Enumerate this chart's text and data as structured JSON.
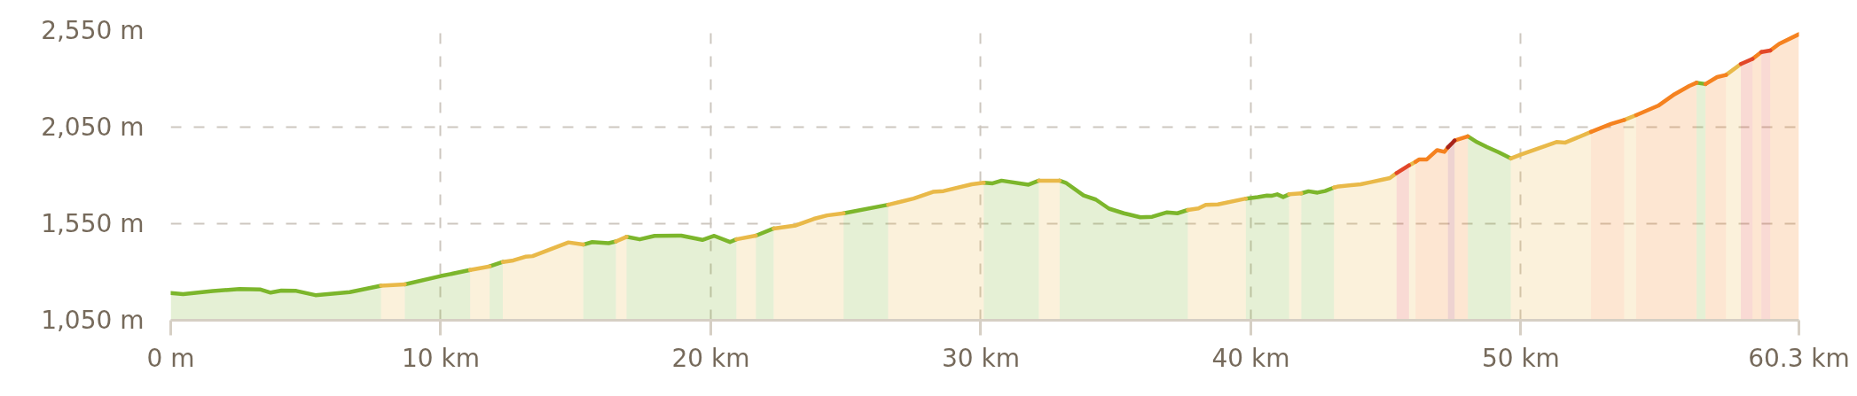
{
  "chart_data": {
    "type": "area",
    "series": [
      {
        "color": "#7cb62c",
        "x": [
          0,
          0.46,
          1.56,
          2.55,
          3.33,
          3.7,
          4.1,
          4.65,
          5.36,
          6.63,
          7.79,
          8.2,
          8.67,
          10.0,
          11.09,
          11.4,
          11.81,
          12.3,
          13.5,
          15.28,
          15.61,
          16.22,
          16.49,
          16.7,
          16.88,
          17.37,
          17.92,
          18.91,
          19.69,
          20.13,
          20.71,
          20.95,
          21.3,
          21.67,
          22.33,
          23.5,
          24.92,
          26.57,
          28.5,
          30.11,
          30.44,
          30.77,
          31.77,
          32.15,
          32.5,
          32.92,
          33.15,
          33.81,
          34.26,
          34.75,
          35.3,
          35.91,
          36.35,
          36.9,
          37.28,
          37.67,
          38.5,
          39.82,
          40.26,
          40.6,
          40.76,
          40.98,
          41.2,
          41.42,
          41.6,
          41.87,
          42.14,
          42.47,
          42.75,
          43.08,
          46.0,
          48.04,
          48.37,
          48.75,
          49.19,
          49.63,
          53.0,
          56.51,
          56.84
        ],
        "values": [
          1191,
          1185,
          1201,
          1212,
          1209,
          1193,
          1204,
          1202,
          1180,
          1196,
          1229,
          null,
          1236,
          1279,
          1310,
          null,
          1329,
          1352,
          null,
          1442,
          1455,
          1449,
          1458,
          null,
          1482,
          1469,
          1487,
          1488,
          1466,
          1487,
          1455,
          1469,
          null,
          1488,
          1525,
          null,
          1604,
          1648,
          null,
          1762,
          1759,
          1773,
          1752,
          1773,
          null,
          1773,
          1762,
          1696,
          1675,
          1628,
          1604,
          1583,
          1586,
          1609,
          1604,
          1621,
          null,
          1680,
          1688,
          1696,
          1694,
          1702,
          1688,
          1702,
          null,
          1707,
          1718,
          1711,
          1719,
          1737,
          null,
          2002,
          1973,
          1947,
          1919,
          1888,
          null,
          2280,
          2273
        ]
      },
      {
        "color": "#e9b949",
        "x": [
          7.79,
          8.67,
          10.0,
          11.09,
          11.81,
          12.05,
          12.3,
          12.69,
          13.13,
          13.4,
          14.73,
          15.28,
          16.0,
          16.49,
          16.88,
          19.0,
          20.95,
          21.67,
          22.0,
          22.33,
          23.15,
          23.82,
          24.31,
          24.92,
          25.7,
          26.57,
          27.51,
          28.23,
          28.62,
          29.67,
          30.11,
          31.0,
          32.15,
          32.92,
          35.0,
          37.67,
          38.06,
          38.33,
          38.78,
          39.82,
          40.6,
          41.42,
          41.87,
          42.5,
          43.08,
          43.25,
          44.07,
          44.44,
          44.88,
          45.15,
          45.4,
          45.6,
          45.86,
          45.98,
          46.1,
          48.0,
          49.63,
          50.01,
          51.32,
          51.65,
          52.6,
          53.5,
          53.83,
          54.27,
          56.0,
          57.6,
          58.15
        ],
        "values": [
          1229,
          1236,
          null,
          1310,
          1329,
          null,
          1352,
          1360,
          1379,
          1382,
          1453,
          1442,
          null,
          1458,
          1482,
          null,
          1469,
          1488,
          null,
          1525,
          1541,
          1575,
          1593,
          1604,
          null,
          1648,
          1680,
          1715,
          1719,
          1754,
          1762,
          null,
          1773,
          1773,
          null,
          1621,
          1629,
          1648,
          1650,
          1680,
          null,
          1702,
          1707,
          null,
          1737,
          1743,
          1754,
          1765,
          1778,
          1786,
          1812,
          null,
          1852,
          1861,
          1870,
          null,
          1888,
          1908,
          1973,
          1970,
          2025,
          null,
          2087,
          2112,
          null,
          2320,
          2377
        ]
      },
      {
        "color": "#f58220",
        "x": [
          46.1,
          46.24,
          46.52,
          46.9,
          47.17,
          47.3,
          47.43,
          47.55,
          48.04,
          50.0,
          52.6,
          53.34,
          53.83,
          54.05,
          54.27,
          55.09,
          55.69,
          56.24,
          56.51,
          56.68,
          56.84,
          57.27,
          57.6,
          58.0,
          58.58,
          58.91,
          59.08,
          59.24,
          59.57,
          60.3
        ],
        "values": [
          1870,
          1883,
          1883,
          1931,
          1922,
          1945,
          null,
          1981,
          2002,
          null,
          2025,
          2067,
          2087,
          null,
          2112,
          2161,
          2220,
          2263,
          2280,
          null,
          2273,
          2309,
          2320,
          null,
          2403,
          2439,
          null,
          2447,
          2481,
          2531
        ]
      },
      {
        "color": "#e2472a",
        "x": [
          45.4,
          45.86,
          52.0,
          58.15,
          58.58,
          58.75,
          58.91,
          59.24
        ],
        "values": [
          1812,
          1852,
          null,
          2377,
          2403,
          null,
          2439,
          2447
        ]
      },
      {
        "color": "#a8241a",
        "x": [
          47.3,
          47.43,
          47.55
        ],
        "values": [
          1945,
          1963,
          1981
        ]
      }
    ],
    "xlim": [
      0,
      60.3
    ],
    "ylim": [
      1050,
      2550
    ],
    "xticks": [
      {
        "value": 0,
        "label": "0 m"
      },
      {
        "value": 10,
        "label": "10 km"
      },
      {
        "value": 20,
        "label": "20 km"
      },
      {
        "value": 30,
        "label": "30 km"
      },
      {
        "value": 40,
        "label": "40 km"
      },
      {
        "value": 50,
        "label": "50 km"
      },
      {
        "value": 60.3,
        "label": "60.3 km"
      }
    ],
    "yticks": [
      {
        "value": 1050,
        "label": "1,050 m"
      },
      {
        "value": 1550,
        "label": "1,550 m"
      },
      {
        "value": 2050,
        "label": "2,050 m"
      },
      {
        "value": 2550,
        "label": "2,550 m"
      }
    ],
    "grid": true,
    "line_style": "solid"
  }
}
